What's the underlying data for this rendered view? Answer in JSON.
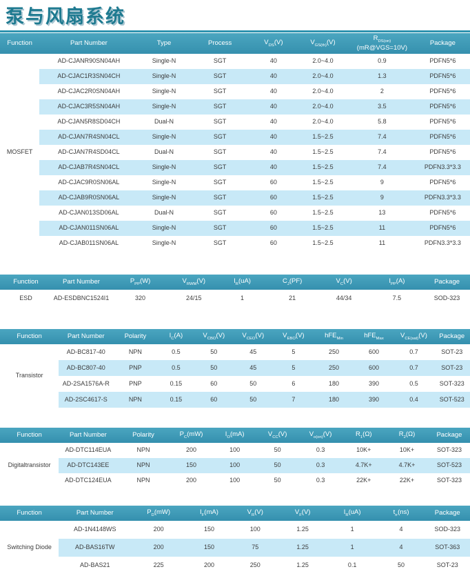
{
  "page": {
    "title": "泵与风扇系统"
  },
  "colors": {
    "header_bg_top": "#4ba6c0",
    "header_bg_bottom": "#3590ae",
    "stripe": "#c8e9f7",
    "accent_bar": "#2e93af",
    "title_color": "#1e7a90",
    "body_text": "#3c3c3c"
  },
  "tables": [
    {
      "name": "MOSFET",
      "function_label": "MOSFET",
      "headers": [
        "Function",
        "Part Number",
        "Type",
        "Process",
        "V_{DS}(V)",
        "V_{GS(th)}(V)",
        "R_{DS(on)}\n(mR@VGS=10V)",
        "Package"
      ],
      "col_widths_pct": [
        8.4,
        21,
        11,
        12.8,
        10,
        11,
        14.2,
        11.6
      ],
      "rows": [
        [
          "AD-CJANR90SN04AH",
          "Single-N",
          "SGT",
          "40",
          "2.0~4.0",
          "0.9",
          "PDFN5*6"
        ],
        [
          "AD-CJAC1R3SN04CH",
          "Single-N",
          "SGT",
          "40",
          "2.0~4.0",
          "1.3",
          "PDFN5*6"
        ],
        [
          "AD-CJAC2R0SN04AH",
          "Single-N",
          "SGT",
          "40",
          "2.0~4.0",
          "2",
          "PDFN5*6"
        ],
        [
          "AD-CJAC3R5SN04AH",
          "Single-N",
          "SGT",
          "40",
          "2.0~4.0",
          "3.5",
          "PDFN5*6"
        ],
        [
          "AD-CJAN5R8SD04CH",
          "Dual-N",
          "SGT",
          "40",
          "2.0~4.0",
          "5.8",
          "PDFN5*6"
        ],
        [
          "AD-CJAN7R4SN04CL",
          "Single-N",
          "SGT",
          "40",
          "1.5~2.5",
          "7.4",
          "PDFN5*6"
        ],
        [
          "AD-CJAN7R4SD04CL",
          "Dual-N",
          "SGT",
          "40",
          "1.5~2.5",
          "7.4",
          "PDFN5*6"
        ],
        [
          "AD-CJAB7R4SN04CL",
          "Single-N",
          "SGT",
          "40",
          "1.5~2.5",
          "7.4",
          "PDFN3.3*3.3"
        ],
        [
          "AD-CJAC9R0SN06AL",
          "Single-N",
          "SGT",
          "60",
          "1.5~2.5",
          "9",
          "PDFN5*6"
        ],
        [
          "AD-CJAB9R0SN06AL",
          "Single-N",
          "SGT",
          "60",
          "1.5~2.5",
          "9",
          "PDFN3.3*3.3"
        ],
        [
          "AD-CJAN013SD06AL",
          "Dual-N",
          "SGT",
          "60",
          "1.5~2.5",
          "13",
          "PDFN5*6"
        ],
        [
          "AD-CJAN011SN06AL",
          "Single-N",
          "SGT",
          "60",
          "1.5~2.5",
          "11",
          "PDFN5*6"
        ],
        [
          "AD-CJAB011SN06AL",
          "Single-N",
          "SGT",
          "60",
          "1.5~2.5",
          "11",
          "PDFN3.3*3.3"
        ]
      ]
    },
    {
      "name": "ESD",
      "function_label": "ESD",
      "headers": [
        "Function",
        "Part Number",
        "P_{PP}(W)",
        "V_{RWM}(V)",
        "I_{R}(uA)",
        "C_{J}(PF)",
        "V_{C}(V)",
        "I_{PP}(A)",
        "Package"
      ],
      "col_widths_pct": [
        11,
        12.6,
        12.5,
        10.3,
        10.3,
        11,
        11,
        11.5,
        9.8
      ],
      "rows": [
        [
          "AD-ESDBNC1524I1",
          "320",
          "24/15",
          "1",
          "21",
          "44/34",
          "7.5",
          "SOD-323"
        ]
      ]
    },
    {
      "name": "Transistor",
      "function_label": "Transistor",
      "headers": [
        "Function",
        "Part Number",
        "Polarity",
        "I_{C}(A)",
        "V_{CBO}(V)",
        "V_{CEO}(V)",
        "V_{EBO}(V)",
        "hFE_{Min}",
        "hFE_{Max}",
        "V_{CE(sat)}(V)",
        "Package"
      ],
      "col_widths_pct": [
        12.5,
        11.6,
        9.4,
        7.9,
        8.2,
        8.5,
        8.7,
        8.5,
        8.5,
        8.5,
        7.7
      ],
      "rows": [
        [
          "AD-BC817-40",
          "NPN",
          "0.5",
          "50",
          "45",
          "5",
          "250",
          "600",
          "0.7",
          "SOT-23"
        ],
        [
          "AD-BC807-40",
          "PNP",
          "0.5",
          "50",
          "45",
          "5",
          "250",
          "600",
          "0.7",
          "SOT-23"
        ],
        [
          "AD-2SA1576A-R",
          "PNP",
          "0.15",
          "60",
          "50",
          "6",
          "180",
          "390",
          "0.5",
          "SOT-323"
        ],
        [
          "AD-2SC4617-S",
          "NPN",
          "0.15",
          "60",
          "50",
          "7",
          "180",
          "390",
          "0.4",
          "SOT-523"
        ]
      ]
    },
    {
      "name": "Digitaltransistor",
      "function_label": "Digitaltransistor",
      "headers": [
        "Function",
        "Part Number",
        "Polarity",
        "P_{C}(mW)",
        "I_{O}(mA)",
        "V_{CC}(V)",
        "V_{o(on)}(V)",
        "R_{1}(Ω)",
        "R_{2}(Ω)",
        "Package"
      ],
      "col_widths_pct": [
        12.5,
        12.5,
        11,
        9.4,
        9.1,
        9.1,
        9.2,
        9.2,
        9.2,
        8.8
      ],
      "rows": [
        [
          "AD-DTC114EUA",
          "NPN",
          "200",
          "100",
          "50",
          "0.3",
          "10K+",
          "10K+",
          "SOT-323"
        ],
        [
          "AD-DTC143EE",
          "NPN",
          "150",
          "100",
          "50",
          "0.3",
          "4.7K+",
          "4.7K+",
          "SOT-523"
        ],
        [
          "AD-DTC124EUA",
          "NPN",
          "200",
          "100",
          "50",
          "0.3",
          "22K+",
          "22K+",
          "SOT-323"
        ]
      ]
    },
    {
      "name": "Switching Diode",
      "function_label": "Switching Diode",
      "headers": [
        "Function",
        "Part Number",
        "P_{D}(mW)",
        "I_{F}(mA)",
        "V_{R}(V)",
        "V_{F}(V)",
        "I_{R}(uA)",
        "t_{rr}(ns)",
        "Package"
      ],
      "col_widths_pct": [
        12.5,
        15.4,
        11.7,
        9.8,
        9.8,
        10.4,
        10.7,
        10.1,
        9.6
      ],
      "rows": [
        [
          "AD-1N4148WS",
          "200",
          "150",
          "100",
          "1.25",
          "1",
          "4",
          "SOD-323"
        ],
        [
          "AD-BAS16TW",
          "200",
          "150",
          "75",
          "1.25",
          "1",
          "4",
          "SOT-363"
        ],
        [
          "AD-BAS21",
          "225",
          "200",
          "250",
          "1.25",
          "0.1",
          "50",
          "SOT-23"
        ]
      ]
    }
  ]
}
